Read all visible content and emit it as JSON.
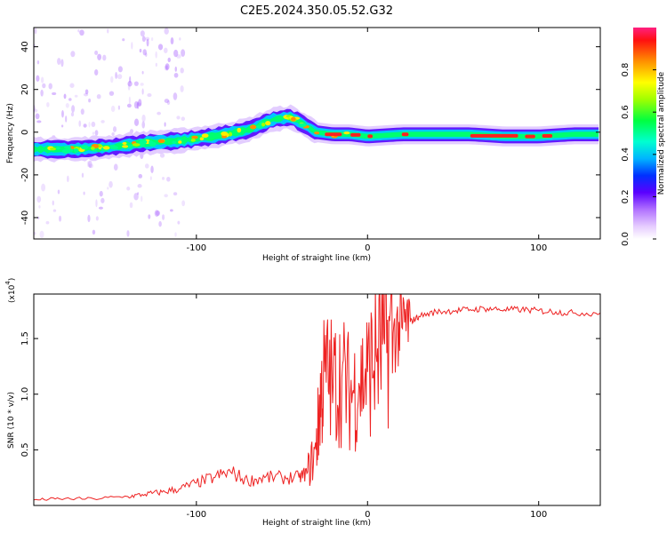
{
  "title": "C2E5.2024.350.05.52.G32",
  "chart_data": [
    {
      "type": "heatmap",
      "xlabel": "Height of straight line (km)",
      "ylabel": "Frequency (Hz)",
      "xlim": [
        -195,
        136
      ],
      "ylim": [
        -50,
        49
      ],
      "xticks": [
        -100,
        0,
        100
      ],
      "yticks": [
        -40,
        -20,
        0,
        20,
        40
      ],
      "colorbar": {
        "label": "Normalized spectral amplitude",
        "range": [
          0,
          1
        ],
        "ticks": [
          0.0,
          0.2,
          0.4,
          0.6,
          0.8
        ]
      },
      "ridge": {
        "x": [
          -195,
          -170,
          -150,
          -130,
          -110,
          -90,
          -70,
          -55,
          -45,
          -38,
          -30,
          -20,
          -10,
          0,
          20,
          40,
          60,
          80,
          100,
          120,
          136
        ],
        "y": [
          -8,
          -8,
          -7,
          -5,
          -4,
          -2,
          1,
          6,
          7,
          4,
          0,
          -1,
          -1,
          -2,
          -1,
          -1,
          -1,
          -2,
          -2,
          -1,
          -1
        ]
      }
    },
    {
      "type": "line",
      "xlabel": "Height of straight line (km)",
      "ylabel": "SNR (10 * v/v)",
      "y_multiplier": "(x10",
      "y_multiplier_exp": "4",
      "y_multiplier_close": ")",
      "xlim": [
        -195,
        136
      ],
      "ylim": [
        0,
        1.9
      ],
      "xticks": [
        -100,
        0,
        100
      ],
      "yticks": [
        0.5,
        1.0,
        1.5
      ],
      "series": [
        {
          "color": "#ee2222",
          "x": [
            -195,
            -180,
            -160,
            -140,
            -130,
            -120,
            -110,
            -100,
            -90,
            -80,
            -70,
            -60,
            -50,
            -40,
            -35,
            -30,
            -28,
            -25,
            -20,
            -15,
            -10,
            -5,
            0,
            5,
            10,
            15,
            20,
            25,
            30,
            40,
            50,
            60,
            70,
            80,
            90,
            100,
            110,
            120,
            136
          ],
          "y": [
            0.05,
            0.06,
            0.06,
            0.08,
            0.1,
            0.12,
            0.15,
            0.2,
            0.25,
            0.3,
            0.22,
            0.25,
            0.25,
            0.25,
            0.3,
            0.5,
            0.9,
            1.2,
            1.1,
            1.15,
            1.0,
            1.1,
            1.2,
            1.35,
            1.45,
            1.55,
            1.6,
            1.65,
            1.7,
            1.74,
            1.75,
            1.76,
            1.77,
            1.76,
            1.76,
            1.75,
            1.74,
            1.73,
            1.73
          ]
        }
      ]
    }
  ]
}
